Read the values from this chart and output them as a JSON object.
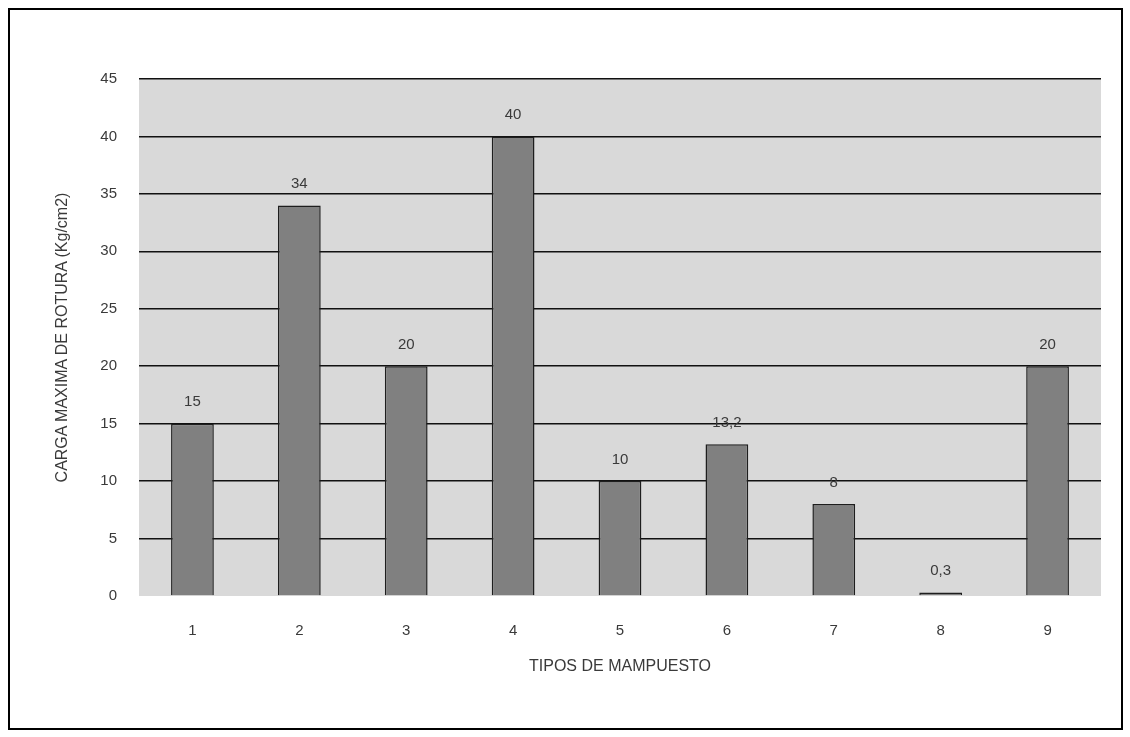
{
  "chart_data": {
    "type": "bar",
    "xlabel": "TIPOS DE MAMPUESTO",
    "ylabel": "CARGA MAXIMA DE ROTURA (Kg/cm2)",
    "categories": [
      "1",
      "2",
      "3",
      "4",
      "5",
      "6",
      "7",
      "8",
      "9"
    ],
    "values": [
      15,
      34,
      20,
      40,
      10,
      13.2,
      8,
      0.3,
      20
    ],
    "value_labels": [
      "15",
      "34",
      "20",
      "40",
      "10",
      "13,2",
      "8",
      "0,3",
      "20"
    ],
    "color": "#808080",
    "ylim": [
      0,
      45
    ],
    "yticks": [
      0,
      5,
      10,
      15,
      20,
      25,
      30,
      35,
      40,
      45
    ],
    "grid": "y"
  }
}
